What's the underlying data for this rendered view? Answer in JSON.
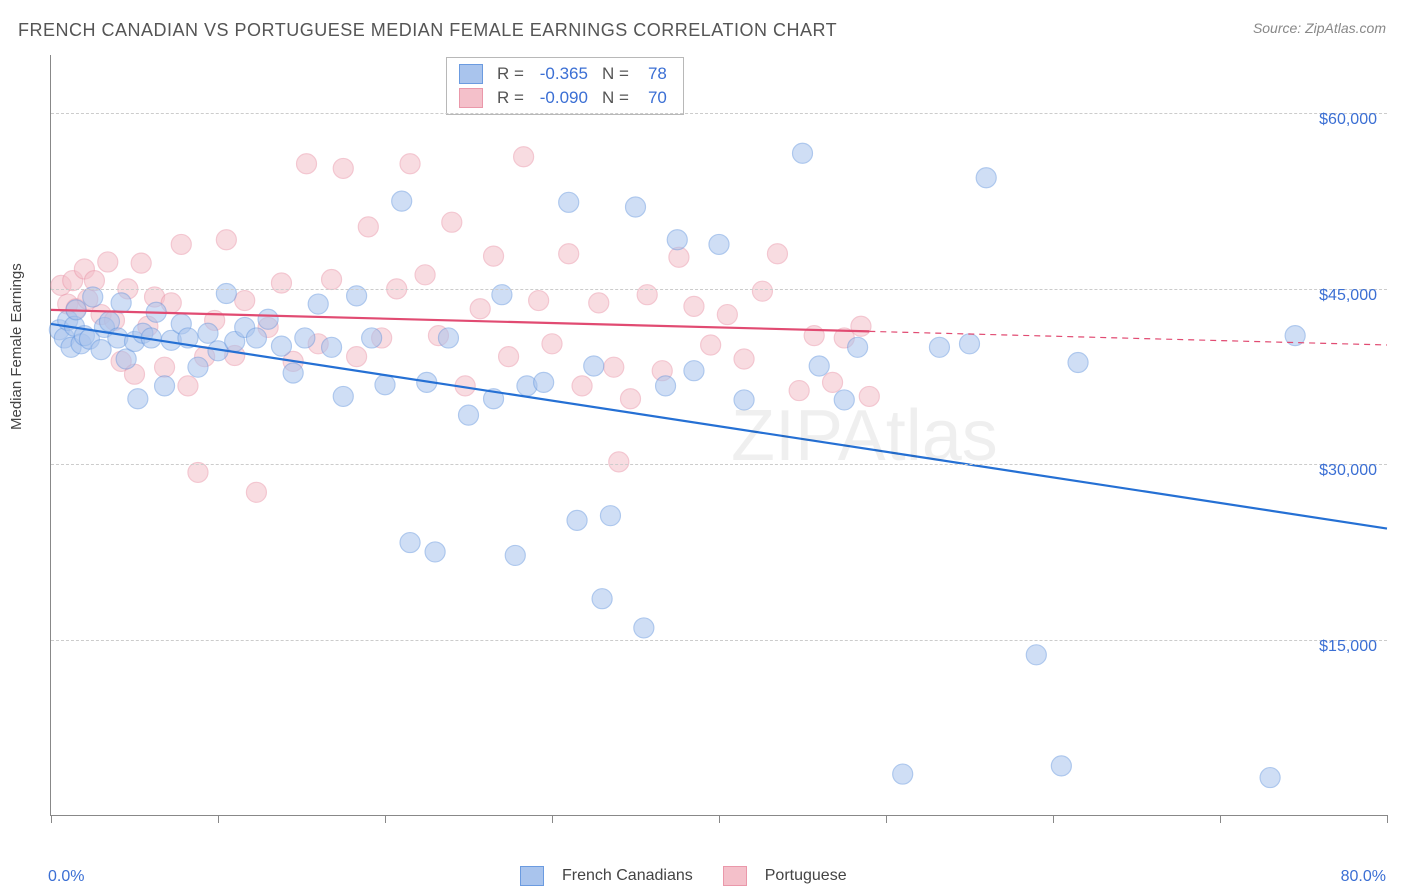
{
  "title": "FRENCH CANADIAN VS PORTUGUESE MEDIAN FEMALE EARNINGS CORRELATION CHART",
  "source": "Source: ZipAtlas.com",
  "y_axis_label": "Median Female Earnings",
  "watermark": "ZIPAtlas",
  "chart": {
    "type": "scatter",
    "xlim": [
      0,
      80
    ],
    "ylim": [
      0,
      65000
    ],
    "x_tick_positions": [
      0,
      10,
      20,
      30,
      40,
      50,
      60,
      70,
      80
    ],
    "x_tick_labels_shown": {
      "0": "0.0%",
      "80": "80.0%"
    },
    "y_ticks": [
      15000,
      30000,
      45000,
      60000
    ],
    "y_tick_labels": [
      "$15,000",
      "$30,000",
      "$45,000",
      "$60,000"
    ],
    "grid_color": "#cccccc",
    "background_color": "#ffffff",
    "axis_color": "#888888",
    "tick_label_color": "#3b6fd4",
    "label_color": "#444444",
    "title_color": "#555555",
    "title_fontsize": 18,
    "label_fontsize": 15,
    "tick_fontsize": 16,
    "marker_radius": 10,
    "marker_opacity": 0.55,
    "line_width": 2.2
  },
  "series": {
    "french_canadian": {
      "label": "French Canadians",
      "color_fill": "#a9c4ed",
      "color_stroke": "#6b9be0",
      "line_color": "#2570d4",
      "regression": {
        "x1": 0,
        "y1": 42000,
        "x2": 80,
        "y2": 24500,
        "solid_until_x": 80
      },
      "R": "-0.365",
      "N": "78",
      "points": [
        [
          0.5,
          41500
        ],
        [
          0.8,
          40800
        ],
        [
          1.0,
          42300
        ],
        [
          1.2,
          40000
        ],
        [
          1.4,
          41800
        ],
        [
          1.5,
          43200
        ],
        [
          1.8,
          40300
        ],
        [
          2.0,
          41000
        ],
        [
          2.3,
          40700
        ],
        [
          2.5,
          44300
        ],
        [
          3.0,
          39800
        ],
        [
          3.2,
          41700
        ],
        [
          3.5,
          42200
        ],
        [
          4.0,
          40800
        ],
        [
          4.2,
          43800
        ],
        [
          4.5,
          39000
        ],
        [
          5.0,
          40500
        ],
        [
          5.2,
          35600
        ],
        [
          5.5,
          41200
        ],
        [
          6.0,
          40800
        ],
        [
          6.3,
          43000
        ],
        [
          6.8,
          36700
        ],
        [
          7.2,
          40600
        ],
        [
          7.8,
          42000
        ],
        [
          8.2,
          40800
        ],
        [
          8.8,
          38300
        ],
        [
          9.4,
          41200
        ],
        [
          10.0,
          39700
        ],
        [
          10.5,
          44600
        ],
        [
          11.0,
          40500
        ],
        [
          11.6,
          41700
        ],
        [
          12.3,
          40800
        ],
        [
          13.0,
          42400
        ],
        [
          13.8,
          40100
        ],
        [
          14.5,
          37800
        ],
        [
          15.2,
          40800
        ],
        [
          16.0,
          43700
        ],
        [
          16.8,
          40000
        ],
        [
          17.5,
          35800
        ],
        [
          18.3,
          44400
        ],
        [
          19.2,
          40800
        ],
        [
          20.0,
          36800
        ],
        [
          21.0,
          52500
        ],
        [
          21.5,
          23300
        ],
        [
          22.5,
          37000
        ],
        [
          23.0,
          22500
        ],
        [
          23.8,
          40800
        ],
        [
          25.0,
          34200
        ],
        [
          26.5,
          35600
        ],
        [
          27.0,
          44500
        ],
        [
          27.8,
          22200
        ],
        [
          28.5,
          36700
        ],
        [
          29.5,
          37000
        ],
        [
          31.0,
          52400
        ],
        [
          31.5,
          25200
        ],
        [
          32.5,
          38400
        ],
        [
          33.0,
          18500
        ],
        [
          33.5,
          25600
        ],
        [
          35.0,
          52000
        ],
        [
          35.5,
          16000
        ],
        [
          36.8,
          36700
        ],
        [
          37.5,
          49200
        ],
        [
          38.5,
          38000
        ],
        [
          40.0,
          48800
        ],
        [
          41.5,
          35500
        ],
        [
          45.0,
          56600
        ],
        [
          46.0,
          38400
        ],
        [
          47.5,
          35500
        ],
        [
          48.3,
          40000
        ],
        [
          51.0,
          3500
        ],
        [
          53.2,
          40000
        ],
        [
          55.0,
          40300
        ],
        [
          56.0,
          54500
        ],
        [
          59.0,
          13700
        ],
        [
          61.5,
          38700
        ],
        [
          60.5,
          4200
        ],
        [
          73.0,
          3200
        ],
        [
          74.5,
          41000
        ]
      ]
    },
    "portuguese": {
      "label": "Portuguese",
      "color_fill": "#f4c0ca",
      "color_stroke": "#ea98aa",
      "line_color": "#e14b72",
      "regression": {
        "x1": 0,
        "y1": 43200,
        "x2": 80,
        "y2": 40200,
        "solid_until_x": 49
      },
      "R": "-0.090",
      "N": "70",
      "points": [
        [
          0.6,
          45300
        ],
        [
          1.0,
          43700
        ],
        [
          1.3,
          45700
        ],
        [
          1.5,
          43300
        ],
        [
          2.0,
          46700
        ],
        [
          2.2,
          44100
        ],
        [
          2.6,
          45700
        ],
        [
          3.0,
          42800
        ],
        [
          3.4,
          47300
        ],
        [
          3.8,
          42300
        ],
        [
          4.2,
          38800
        ],
        [
          4.6,
          45000
        ],
        [
          5.0,
          37700
        ],
        [
          5.4,
          47200
        ],
        [
          5.8,
          41800
        ],
        [
          6.2,
          44300
        ],
        [
          6.8,
          38300
        ],
        [
          7.2,
          43800
        ],
        [
          7.8,
          48800
        ],
        [
          8.2,
          36700
        ],
        [
          8.8,
          29300
        ],
        [
          9.2,
          39200
        ],
        [
          9.8,
          42300
        ],
        [
          10.5,
          49200
        ],
        [
          11.0,
          39300
        ],
        [
          11.6,
          44000
        ],
        [
          12.3,
          27600
        ],
        [
          13.0,
          41700
        ],
        [
          13.8,
          45500
        ],
        [
          14.5,
          38800
        ],
        [
          15.3,
          55700
        ],
        [
          16.0,
          40300
        ],
        [
          16.8,
          45800
        ],
        [
          17.5,
          55300
        ],
        [
          18.3,
          39200
        ],
        [
          19.0,
          50300
        ],
        [
          19.8,
          40800
        ],
        [
          20.7,
          45000
        ],
        [
          21.5,
          55700
        ],
        [
          22.4,
          46200
        ],
        [
          23.2,
          41000
        ],
        [
          24.0,
          50700
        ],
        [
          24.8,
          36700
        ],
        [
          25.7,
          43300
        ],
        [
          26.5,
          47800
        ],
        [
          27.4,
          39200
        ],
        [
          28.3,
          56300
        ],
        [
          29.2,
          44000
        ],
        [
          30.0,
          40300
        ],
        [
          31.0,
          48000
        ],
        [
          31.8,
          36700
        ],
        [
          32.8,
          43800
        ],
        [
          33.7,
          38300
        ],
        [
          34.7,
          35600
        ],
        [
          35.7,
          44500
        ],
        [
          36.6,
          38000
        ],
        [
          37.6,
          47700
        ],
        [
          38.5,
          43500
        ],
        [
          39.5,
          40200
        ],
        [
          40.5,
          42800
        ],
        [
          41.5,
          39000
        ],
        [
          42.6,
          44800
        ],
        [
          43.5,
          48000
        ],
        [
          44.8,
          36300
        ],
        [
          45.7,
          41000
        ],
        [
          46.8,
          37000
        ],
        [
          47.5,
          40800
        ],
        [
          48.5,
          41800
        ],
        [
          49.0,
          35800
        ],
        [
          34.0,
          30200
        ]
      ]
    }
  },
  "stat_box": {
    "rows": [
      {
        "swatch_fill": "#a9c4ed",
        "swatch_stroke": "#6b9be0",
        "R_label": "R =",
        "R_val": "-0.365",
        "N_label": "N =",
        "N_val": "78"
      },
      {
        "swatch_fill": "#f4c0ca",
        "swatch_stroke": "#ea98aa",
        "R_label": "R =",
        "R_val": "-0.090",
        "N_label": "N =",
        "N_val": "70"
      }
    ]
  },
  "legend": [
    {
      "swatch_fill": "#a9c4ed",
      "swatch_stroke": "#6b9be0",
      "label": "French Canadians"
    },
    {
      "swatch_fill": "#f4c0ca",
      "swatch_stroke": "#ea98aa",
      "label": "Portuguese"
    }
  ]
}
